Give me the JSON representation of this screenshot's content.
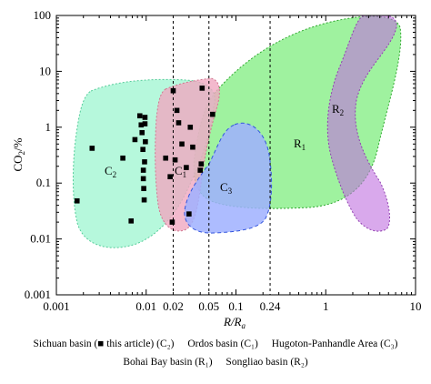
{
  "chart_data": {
    "type": "scatter",
    "xlabel": "R/Ra",
    "ylabel": "CO2/%",
    "xscale": "log",
    "yscale": "log",
    "xlim": [
      0.001,
      10
    ],
    "ylim": [
      0.001,
      100
    ],
    "x_ticks": [
      "0.001",
      "0.01",
      "0.1",
      "1",
      "10"
    ],
    "y_ticks": [
      "0.001",
      "0.01",
      "0.1",
      "1",
      "10",
      "100"
    ],
    "reference_lines": [
      {
        "x": 0.02,
        "label": "0.02"
      },
      {
        "x": 0.05,
        "label": "0.05"
      },
      {
        "x": 0.24,
        "label": "0.24"
      }
    ],
    "series": [
      {
        "name": "Sichuan basin (■ this article) (C2)",
        "marker": "square",
        "points": [
          [
            0.0017,
            0.048
          ],
          [
            0.0025,
            0.42
          ],
          [
            0.0055,
            0.28
          ],
          [
            0.0068,
            0.021
          ],
          [
            0.0075,
            0.6
          ],
          [
            0.0085,
            1.6
          ],
          [
            0.0088,
            1.1
          ],
          [
            0.009,
            0.8
          ],
          [
            0.0092,
            0.4
          ],
          [
            0.0093,
            0.17
          ],
          [
            0.0093,
            0.12
          ],
          [
            0.0094,
            0.08
          ],
          [
            0.0095,
            0.05
          ],
          [
            0.0096,
            0.24
          ],
          [
            0.0097,
            1.5
          ],
          [
            0.0097,
            1.15
          ],
          [
            0.0098,
            0.55
          ],
          [
            0.0165,
            0.28
          ],
          [
            0.0185,
            0.13
          ],
          [
            0.0195,
            0.02
          ],
          [
            0.02,
            4.5
          ],
          [
            0.021,
            0.26
          ],
          [
            0.022,
            2.0
          ],
          [
            0.023,
            1.2
          ],
          [
            0.025,
            0.5
          ],
          [
            0.028,
            0.19
          ],
          [
            0.03,
            0.028
          ],
          [
            0.031,
            1.0
          ],
          [
            0.033,
            0.44
          ],
          [
            0.04,
            0.17
          ],
          [
            0.041,
            0.22
          ],
          [
            0.042,
            5.0
          ],
          [
            0.055,
            1.7
          ]
        ]
      }
    ],
    "regions": [
      {
        "name": "C2",
        "label": "C",
        "sub": "2",
        "color": "#a8f5d8"
      },
      {
        "name": "C1",
        "label": "C",
        "sub": "1",
        "color": "#e8a8a8"
      },
      {
        "name": "C3",
        "label": "C",
        "sub": "3",
        "color": "#9fb0ff"
      },
      {
        "name": "R1",
        "label": "R",
        "sub": "1",
        "color": "#8ef08e"
      },
      {
        "name": "R2",
        "label": "R",
        "sub": "2",
        "color": "#c88be8"
      }
    ],
    "legend_row_1": [
      "Sichuan basin (■ this article) (C₂)",
      "Ordos basin (C₁)",
      "Hugoton-Panhandle Area (C₃)"
    ],
    "legend_row_2": [
      "Bohai Bay basin (R₁)",
      "Songliao basin (R₂)"
    ]
  }
}
